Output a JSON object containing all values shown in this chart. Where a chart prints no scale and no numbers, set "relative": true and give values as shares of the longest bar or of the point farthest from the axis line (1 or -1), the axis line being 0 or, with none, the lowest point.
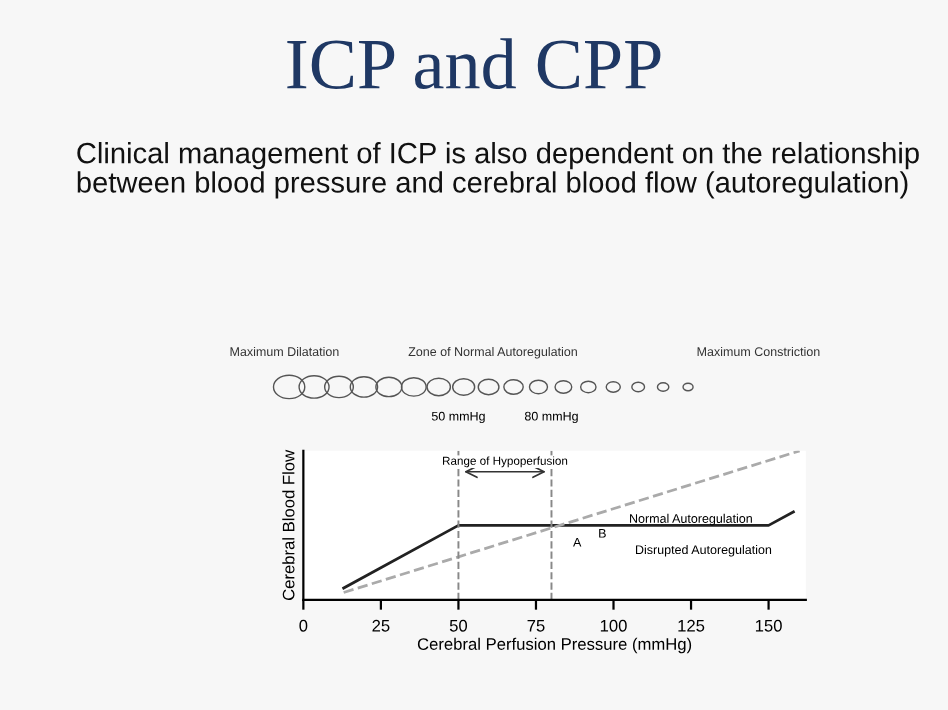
{
  "chart_data": {
    "type": "line",
    "title": "ICP and CPP",
    "subtitle": "Clinical management of ICP is also dependent on the relationship between blood pressure and cerebral blood flow (autoregulation)",
    "xlabel": "Cerebral Perfusion Pressure (mmHg)",
    "ylabel": "Cerebral Blood Flow",
    "relative": true,
    "series": [
      {
        "color": "#222222",
        "line_style": "solid",
        "x": [
          13,
          50,
          150,
          158
        ],
        "values": [
          0.08,
          0.5,
          0.5,
          0.59
        ]
      },
      {
        "color": "#aaaaaa",
        "line_style": "dashed",
        "x": [
          13,
          160
        ],
        "values": [
          0.05,
          1.0
        ]
      }
    ],
    "xlim": [
      0,
      162
    ],
    "xticks": [
      0,
      25,
      50,
      75,
      100,
      125,
      150
    ],
    "ref_lines": [
      {
        "axis": "x",
        "value": 50,
        "label": "50 mmHg",
        "color": "#888888",
        "line_style": "dashed"
      },
      {
        "axis": "x",
        "value": 80,
        "label": "80 mmHg",
        "color": "#888888",
        "line_style": "dashed"
      }
    ],
    "annotations": [
      "Maximum Dilatation",
      "Zone of Normal Autoregulation",
      "Maximum Constriction",
      "Range of Hypoperfusion",
      {
        "text": "Normal Autoregulation",
        "x": 105,
        "y": 0.5
      },
      "Disrupted Autoregulation",
      "A",
      "B"
    ],
    "grid": false,
    "marker": "none"
  }
}
